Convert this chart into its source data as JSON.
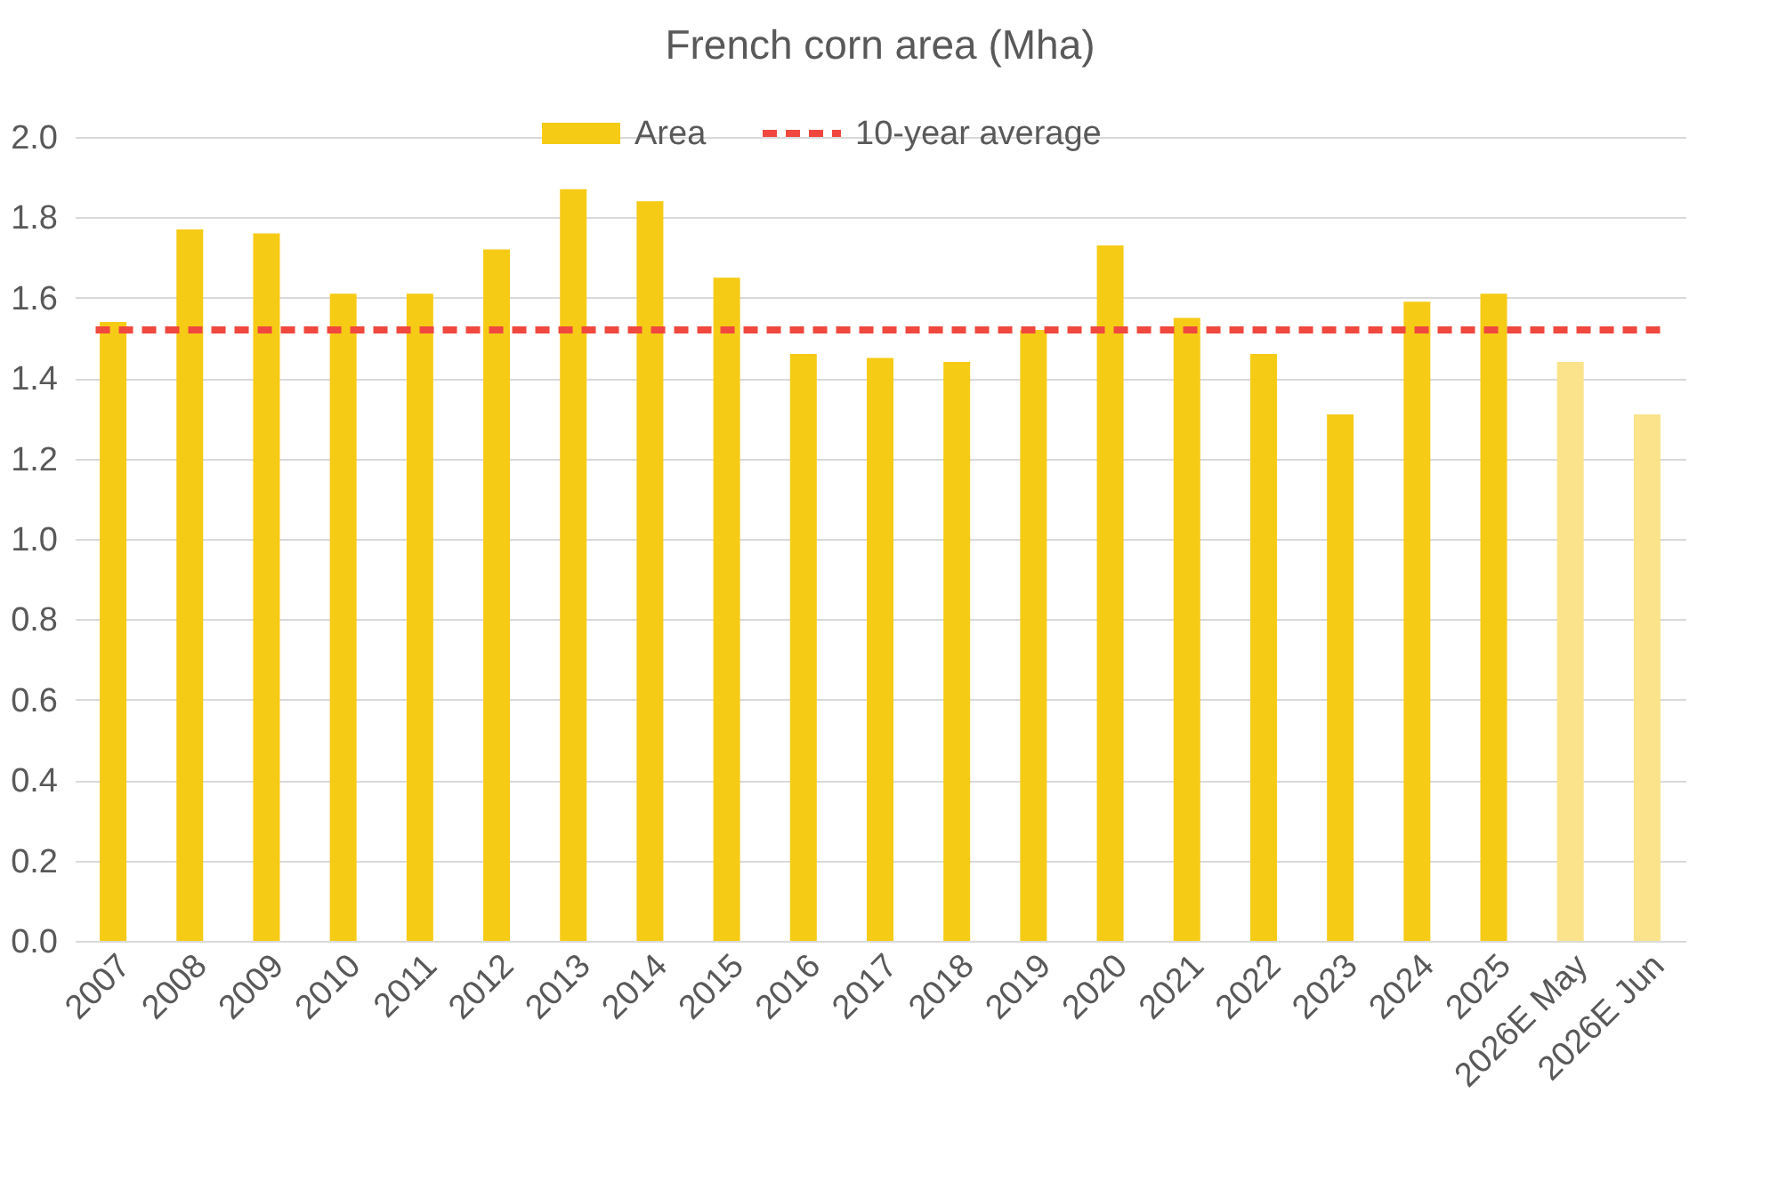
{
  "chart_data": {
    "type": "bar",
    "title": "French corn area (Mha)",
    "categories": [
      "2007",
      "2008",
      "2009",
      "2010",
      "2011",
      "2012",
      "2013",
      "2014",
      "2015",
      "2016",
      "2017",
      "2018",
      "2019",
      "2020",
      "2021",
      "2022",
      "2023",
      "2024",
      "2025",
      "2026E May",
      "2026E Jun"
    ],
    "series": [
      {
        "name": "Area",
        "color": "#f6cb16",
        "colors": [
          "#f6cb16",
          "#f6cb16",
          "#f6cb16",
          "#f6cb16",
          "#f6cb16",
          "#f6cb16",
          "#f6cb16",
          "#f6cb16",
          "#f6cb16",
          "#f6cb16",
          "#f6cb16",
          "#f6cb16",
          "#f6cb16",
          "#f6cb16",
          "#f6cb16",
          "#f6cb16",
          "#f6cb16",
          "#f6cb16",
          "#f6cb16",
          "#fae38a",
          "#fae38a"
        ],
        "values": [
          1.54,
          1.77,
          1.76,
          1.61,
          1.61,
          1.72,
          1.87,
          1.84,
          1.65,
          1.46,
          1.45,
          1.44,
          1.52,
          1.73,
          1.55,
          1.46,
          1.31,
          1.59,
          1.61,
          1.44,
          1.31
        ]
      }
    ],
    "ref_lines": [
      {
        "axis": "y",
        "value": 1.52,
        "label": "10-year average",
        "color": "#f0483e",
        "line_style": "dashed"
      }
    ],
    "ylim": [
      0,
      2.0
    ],
    "yticks": [
      {
        "value": 0,
        "label": "0.0"
      },
      {
        "value": 0.2,
        "label": "0.2"
      },
      {
        "value": 0.4,
        "label": "0.4"
      },
      {
        "value": 0.6,
        "label": "0.6"
      },
      {
        "value": 0.8,
        "label": "0.8"
      },
      {
        "value": 1.0,
        "label": "1.0"
      },
      {
        "value": 1.2,
        "label": "1.2"
      },
      {
        "value": 1.4,
        "label": "1.4"
      },
      {
        "value": 1.6,
        "label": "1.6"
      },
      {
        "value": 1.8,
        "label": "1.8"
      },
      {
        "value": 2.0,
        "label": "2.0"
      }
    ],
    "grid": "y",
    "legend": "top"
  }
}
